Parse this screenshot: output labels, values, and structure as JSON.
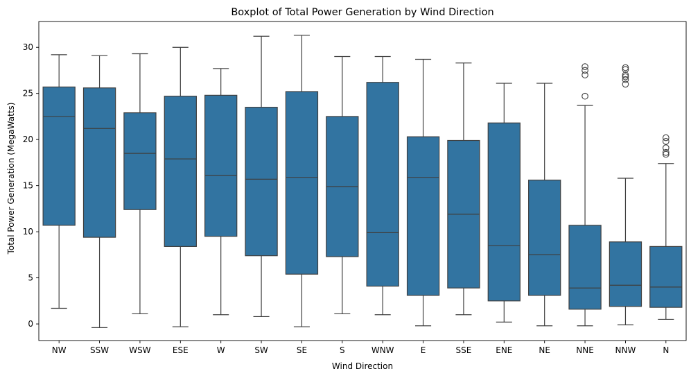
{
  "chart_data": {
    "type": "boxplot",
    "title": "Boxplot of Total Power Generation by Wind Direction",
    "xlabel": "Wind Direction",
    "ylabel": "Total Power Generation (MegaWatts)",
    "ylim": [
      -1.8,
      32.8
    ],
    "yticks": [
      0,
      5,
      10,
      15,
      20,
      25,
      30
    ],
    "grid": false,
    "legend": "none",
    "box_color": "#3274a1",
    "edge_color": "#3f3f3f",
    "categories": [
      "NW",
      "SSW",
      "WSW",
      "ESE",
      "W",
      "SW",
      "SE",
      "S",
      "WNW",
      "E",
      "SSE",
      "ENE",
      "NE",
      "NNE",
      "NNW",
      "N"
    ],
    "boxes": [
      {
        "label": "NW",
        "whisker_low": 1.7,
        "q1": 10.7,
        "median": 22.5,
        "q3": 25.7,
        "whisker_high": 29.2,
        "outliers": []
      },
      {
        "label": "SSW",
        "whisker_low": -0.4,
        "q1": 9.4,
        "median": 21.2,
        "q3": 25.6,
        "whisker_high": 29.1,
        "outliers": []
      },
      {
        "label": "WSW",
        "whisker_low": 1.1,
        "q1": 12.4,
        "median": 18.5,
        "q3": 22.9,
        "whisker_high": 29.3,
        "outliers": []
      },
      {
        "label": "ESE",
        "whisker_low": -0.3,
        "q1": 8.4,
        "median": 17.9,
        "q3": 24.7,
        "whisker_high": 30.0,
        "outliers": []
      },
      {
        "label": "W",
        "whisker_low": 1.0,
        "q1": 9.5,
        "median": 16.1,
        "q3": 24.8,
        "whisker_high": 27.7,
        "outliers": []
      },
      {
        "label": "SW",
        "whisker_low": 0.8,
        "q1": 7.4,
        "median": 15.7,
        "q3": 23.5,
        "whisker_high": 31.2,
        "outliers": []
      },
      {
        "label": "SE",
        "whisker_low": -0.3,
        "q1": 5.4,
        "median": 15.9,
        "q3": 25.2,
        "whisker_high": 31.3,
        "outliers": []
      },
      {
        "label": "S",
        "whisker_low": 1.1,
        "q1": 7.3,
        "median": 14.9,
        "q3": 22.5,
        "whisker_high": 29.0,
        "outliers": []
      },
      {
        "label": "WNW",
        "whisker_low": 1.0,
        "q1": 4.1,
        "median": 9.9,
        "q3": 26.2,
        "whisker_high": 29.0,
        "outliers": []
      },
      {
        "label": "E",
        "whisker_low": -0.2,
        "q1": 3.1,
        "median": 15.9,
        "q3": 20.3,
        "whisker_high": 28.7,
        "outliers": []
      },
      {
        "label": "SSE",
        "whisker_low": 1.0,
        "q1": 3.9,
        "median": 11.9,
        "q3": 19.9,
        "whisker_high": 28.3,
        "outliers": []
      },
      {
        "label": "ENE",
        "whisker_low": 0.2,
        "q1": 2.5,
        "median": 8.5,
        "q3": 21.8,
        "whisker_high": 26.1,
        "outliers": []
      },
      {
        "label": "NE",
        "whisker_low": -0.2,
        "q1": 3.1,
        "median": 7.5,
        "q3": 15.6,
        "whisker_high": 26.1,
        "outliers": []
      },
      {
        "label": "NNE",
        "whisker_low": -0.2,
        "q1": 1.6,
        "median": 3.9,
        "q3": 10.7,
        "whisker_high": 23.7,
        "outliers": [
          24.7,
          27.0,
          27.5,
          27.9
        ]
      },
      {
        "label": "NNW",
        "whisker_low": -0.1,
        "q1": 1.9,
        "median": 4.2,
        "q3": 8.9,
        "whisker_high": 15.8,
        "outliers": [
          26.0,
          26.5,
          26.8,
          27.0,
          27.6,
          27.8
        ]
      },
      {
        "label": "N",
        "whisker_low": 0.5,
        "q1": 1.8,
        "median": 4.0,
        "q3": 8.4,
        "whisker_high": 17.4,
        "outliers": [
          18.4,
          18.6,
          19.1,
          19.8,
          20.2
        ]
      }
    ]
  }
}
